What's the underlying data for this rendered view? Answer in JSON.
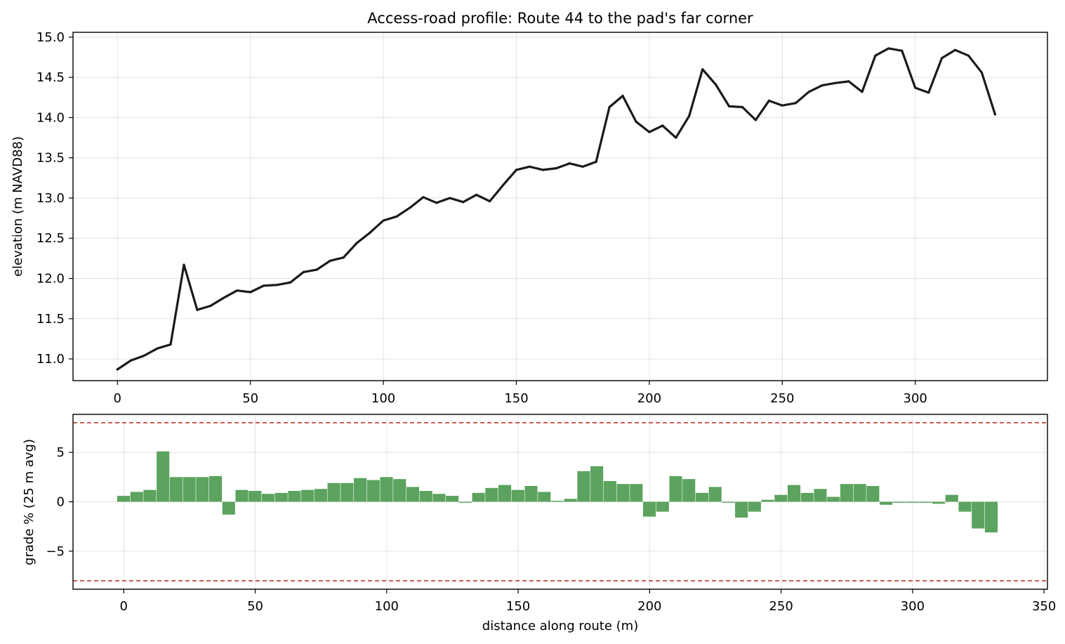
{
  "chart_data": [
    {
      "type": "line",
      "title": "Access-road profile: Route 44 to the pad's far corner",
      "xlabel": "",
      "ylabel": "elevation (m NAVD88)",
      "xlim": [
        -16.7,
        349.7
      ],
      "ylim": [
        10.73,
        15.06
      ],
      "xticks": [
        0,
        50,
        100,
        150,
        200,
        250,
        300
      ],
      "yticks": [
        11.0,
        11.5,
        12.0,
        12.5,
        13.0,
        13.5,
        14.0,
        14.5,
        15.0
      ],
      "grid": true,
      "series": [
        {
          "color": "#1a1a1a",
          "x": [
            0,
            5,
            10,
            15,
            20,
            25,
            30,
            35,
            40,
            45,
            50,
            55,
            60,
            65,
            70,
            75,
            80,
            85,
            90,
            95,
            100,
            105,
            110,
            115,
            120,
            125,
            130,
            135,
            140,
            145,
            150,
            155,
            160,
            165,
            170,
            175,
            180,
            185,
            190,
            195,
            200,
            205,
            210,
            215,
            220,
            225,
            230,
            235,
            240,
            245,
            250,
            255,
            260,
            265,
            270,
            275,
            280,
            285,
            290,
            295,
            300,
            305,
            310,
            315,
            320,
            325,
            330
          ],
          "y": [
            10.87,
            10.98,
            11.04,
            11.13,
            11.18,
            12.17,
            11.61,
            11.66,
            11.76,
            11.85,
            11.83,
            11.91,
            11.92,
            11.95,
            12.08,
            12.11,
            12.22,
            12.26,
            12.44,
            12.57,
            12.72,
            12.77,
            12.88,
            13.01,
            12.94,
            13.0,
            12.95,
            13.04,
            12.96,
            13.16,
            13.35,
            13.39,
            13.35,
            13.37,
            13.43,
            13.39,
            13.45,
            14.13,
            14.27,
            13.95,
            13.82,
            13.9,
            13.75,
            14.02,
            14.6,
            14.41,
            14.14,
            14.13,
            13.97,
            14.21,
            14.15,
            14.18,
            14.32,
            14.4,
            14.43,
            14.45,
            14.32,
            14.77,
            14.86,
            14.83,
            14.37,
            14.31,
            14.74,
            14.84,
            14.77,
            14.56,
            14.04
          ]
        }
      ]
    },
    {
      "type": "bar",
      "title": "",
      "xlabel": "distance along route (m)",
      "ylabel": "grade % (25 m avg)",
      "xlim": [
        -19.3,
        351.3
      ],
      "ylim": [
        -8.85,
        8.85
      ],
      "xticks": [
        0,
        50,
        100,
        150,
        200,
        250,
        300,
        350
      ],
      "yticks": [
        -5,
        0,
        5
      ],
      "grid": true,
      "bar_width": 5,
      "bar_color": "#5ba35e",
      "threshold_lines": {
        "values": [
          8,
          -8
        ],
        "color": "#c0392b",
        "style": "dashed"
      },
      "series": [
        {
          "x": [
            0,
            5,
            10,
            15,
            20,
            25,
            30,
            35,
            40,
            45,
            50,
            55,
            60,
            65,
            70,
            75,
            80,
            85,
            90,
            95,
            100,
            105,
            110,
            115,
            120,
            125,
            130,
            135,
            140,
            145,
            150,
            155,
            160,
            165,
            170,
            175,
            180,
            185,
            190,
            195,
            200,
            205,
            210,
            215,
            220,
            225,
            230,
            235,
            240,
            245,
            250,
            255,
            260,
            265,
            270,
            275,
            280,
            285,
            290,
            295,
            300,
            305,
            310,
            315,
            320,
            325,
            330
          ],
          "values": [
            0.6,
            1.0,
            1.2,
            5.1,
            2.5,
            2.5,
            2.5,
            2.6,
            -1.3,
            1.2,
            1.1,
            0.8,
            0.9,
            1.1,
            1.2,
            1.3,
            1.9,
            1.9,
            2.4,
            2.2,
            2.5,
            2.3,
            1.5,
            1.1,
            0.8,
            0.6,
            -0.1,
            0.9,
            1.4,
            1.7,
            1.2,
            1.6,
            1.0,
            0.1,
            0.3,
            3.1,
            3.6,
            2.1,
            1.8,
            1.8,
            -1.5,
            -1.0,
            2.6,
            2.3,
            0.9,
            1.5,
            -0.1,
            -1.6,
            -1.0,
            0.2,
            0.7,
            1.7,
            0.9,
            1.3,
            0.5,
            1.8,
            1.8,
            1.6,
            -0.3,
            -0.1,
            -0.1,
            -0.1,
            -0.2,
            0.7,
            -1.0,
            -2.7,
            -3.1
          ]
        }
      ]
    }
  ]
}
